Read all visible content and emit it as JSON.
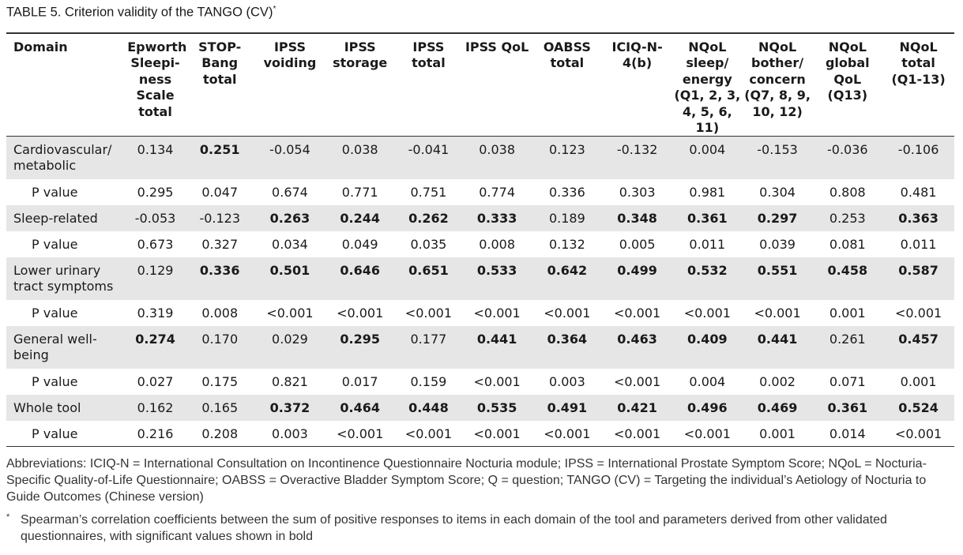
{
  "title": "TABLE 5. Criterion validity of the TANGO (CV)",
  "title_mark": "*",
  "columns": [
    [
      "Domain"
    ],
    [
      "Epworth",
      "Sleepi-",
      "ness",
      "Scale",
      "total"
    ],
    [
      "STOP-",
      "Bang",
      "total"
    ],
    [
      "IPSS",
      "voiding"
    ],
    [
      "IPSS",
      "storage"
    ],
    [
      "IPSS",
      "total"
    ],
    [
      "IPSS QoL"
    ],
    [
      "OABSS",
      "total"
    ],
    [
      "ICIQ-N-",
      "4(b)"
    ],
    [
      "NQoL",
      "sleep/",
      "energy",
      "(Q1, 2, 3,",
      "4, 5, 6,",
      "11)"
    ],
    [
      "NQoL",
      "bother/",
      "concern",
      "(Q7, 8, 9,",
      "10, 12)"
    ],
    [
      "NQoL",
      "global",
      "QoL",
      "(Q13)"
    ],
    [
      "NQoL",
      "total",
      "(Q1-13)"
    ]
  ],
  "rows": [
    {
      "label": [
        "Cardiovascular/",
        "metabolic"
      ],
      "sub": false,
      "shade": true,
      "values": [
        "0.134",
        "0.251",
        "-0.054",
        "0.038",
        "-0.041",
        "0.038",
        "0.123",
        "-0.132",
        "0.004",
        "-0.153",
        "-0.036",
        "-0.106"
      ],
      "bold": [
        1
      ]
    },
    {
      "label": [
        "P value"
      ],
      "sub": true,
      "shade": false,
      "values": [
        "0.295",
        "0.047",
        "0.674",
        "0.771",
        "0.751",
        "0.774",
        "0.336",
        "0.303",
        "0.981",
        "0.304",
        "0.808",
        "0.481"
      ],
      "bold": []
    },
    {
      "label": [
        "Sleep-related"
      ],
      "sub": false,
      "shade": true,
      "values": [
        "-0.053",
        "-0.123",
        "0.263",
        "0.244",
        "0.262",
        "0.333",
        "0.189",
        "0.348",
        "0.361",
        "0.297",
        "0.253",
        "0.363"
      ],
      "bold": [
        2,
        3,
        4,
        5,
        7,
        8,
        9,
        11
      ]
    },
    {
      "label": [
        "P value"
      ],
      "sub": true,
      "shade": false,
      "values": [
        "0.673",
        "0.327",
        "0.034",
        "0.049",
        "0.035",
        "0.008",
        "0.132",
        "0.005",
        "0.011",
        "0.039",
        "0.081",
        "0.011"
      ],
      "bold": []
    },
    {
      "label": [
        "Lower urinary",
        "tract symptoms"
      ],
      "sub": false,
      "shade": true,
      "values": [
        "0.129",
        "0.336",
        "0.501",
        "0.646",
        "0.651",
        "0.533",
        "0.642",
        "0.499",
        "0.532",
        "0.551",
        "0.458",
        "0.587"
      ],
      "bold": [
        1,
        2,
        3,
        4,
        5,
        6,
        7,
        8,
        9,
        10,
        11
      ]
    },
    {
      "label": [
        "P value"
      ],
      "sub": true,
      "shade": false,
      "values": [
        "0.319",
        "0.008",
        "<0.001",
        "<0.001",
        "<0.001",
        "<0.001",
        "<0.001",
        "<0.001",
        "<0.001",
        "<0.001",
        "0.001",
        "<0.001"
      ],
      "bold": []
    },
    {
      "label": [
        "General well-",
        "being"
      ],
      "sub": false,
      "shade": true,
      "values": [
        "0.274",
        "0.170",
        "0.029",
        "0.295",
        "0.177",
        "0.441",
        "0.364",
        "0.463",
        "0.409",
        "0.441",
        "0.261",
        "0.457"
      ],
      "bold": [
        0,
        3,
        5,
        6,
        7,
        8,
        9,
        11
      ]
    },
    {
      "label": [
        "P value"
      ],
      "sub": true,
      "shade": false,
      "values": [
        "0.027",
        "0.175",
        "0.821",
        "0.017",
        "0.159",
        "<0.001",
        "0.003",
        "<0.001",
        "0.004",
        "0.002",
        "0.071",
        "0.001"
      ],
      "bold": []
    },
    {
      "label": [
        "Whole tool"
      ],
      "sub": false,
      "shade": true,
      "values": [
        "0.162",
        "0.165",
        "0.372",
        "0.464",
        "0.448",
        "0.535",
        "0.491",
        "0.421",
        "0.496",
        "0.469",
        "0.361",
        "0.524"
      ],
      "bold": [
        2,
        3,
        4,
        5,
        6,
        7,
        8,
        9,
        10,
        11
      ]
    },
    {
      "label": [
        "P value"
      ],
      "sub": true,
      "shade": false,
      "values": [
        "0.216",
        "0.208",
        "0.003",
        "<0.001",
        "<0.001",
        "<0.001",
        "<0.001",
        "<0.001",
        "<0.001",
        "0.001",
        "0.014",
        "<0.001"
      ],
      "bold": []
    }
  ],
  "abbreviations": "Abbreviations: ICIQ-N = International Consultation on Incontinence Questionnaire Nocturia module; IPSS = International Prostate Symptom Score; NQoL = Nocturia-Specific Quality-of-Life Questionnaire; OABSS = Overactive Bladder Symptom Score; Q = question; TANGO (CV) = Targeting the individual’s Aetiology of Nocturia to Guide Outcomes (Chinese version)",
  "footnote_mark": "*",
  "footnote": "Spearman’s correlation coefficients between the sum of positive responses to items in each domain of the tool and parameters derived from other validated questionnaires, with significant values shown in bold"
}
